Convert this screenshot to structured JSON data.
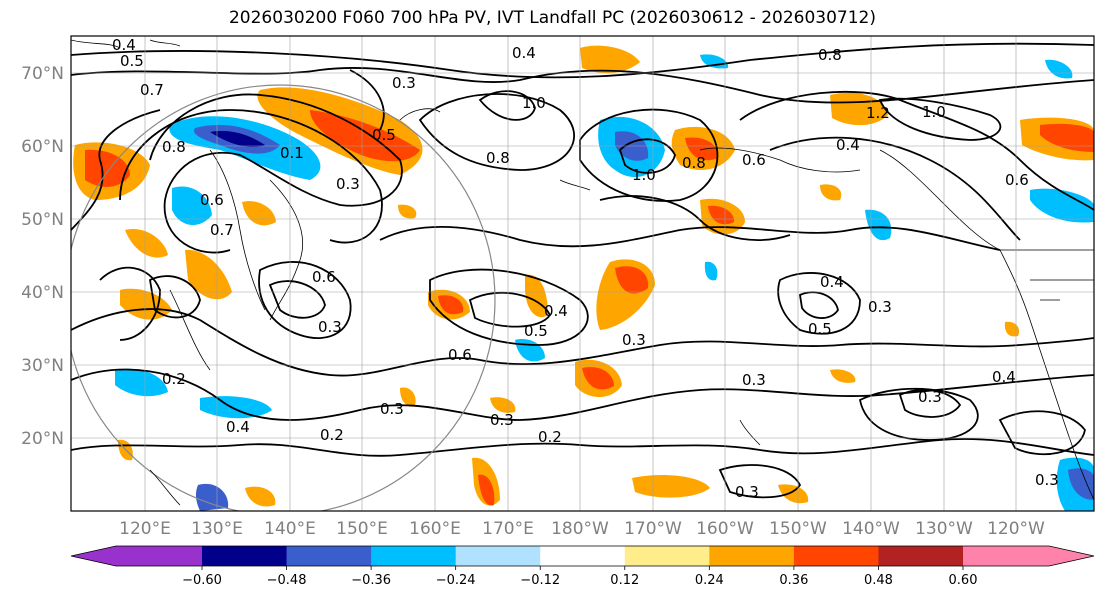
{
  "title": "2026030200 F060 700 hPa PV, IVT Landfall PC (2026030612 - 2026030712)",
  "lat_labels": [
    "70°N",
    "60°N",
    "50°N",
    "40°N",
    "30°N",
    "20°N"
  ],
  "lon_labels": [
    "120°E",
    "130°E",
    "140°E",
    "150°E",
    "160°E",
    "170°E",
    "180°W",
    "170°W",
    "160°W",
    "150°W",
    "140°W",
    "130°W",
    "120°W"
  ],
  "colorbar": {
    "colors": [
      "#9932cc",
      "#00008b",
      "#3a5fcd",
      "#00bfff",
      "#b0e2ff",
      "#ffffff",
      "#ffec8b",
      "#ffa500",
      "#ff4500",
      "#b22222",
      "#ff82ab"
    ],
    "ticks": [
      "−0.60",
      "−0.48",
      "−0.36",
      "−0.24",
      "−0.12",
      "0.12",
      "0.24",
      "0.36",
      "0.48",
      "0.60"
    ]
  },
  "contour_labels": [
    "0.4",
    "0.5",
    "0.7",
    "0.3",
    "0.4",
    "0.8",
    "0.6",
    "0.7",
    "0.1",
    "1.0",
    "0.8",
    "0.5",
    "0.8",
    "1.0",
    "0.6",
    "1.2",
    "1.0",
    "0.6",
    "0.4",
    "0.8",
    "0.3",
    "0.6",
    "0.4",
    "0.5",
    "0.3",
    "0.4",
    "0.5",
    "0.6",
    "0.3",
    "0.2",
    "0.4",
    "0.2",
    "0.3",
    "0.3",
    "0.2",
    "0.3",
    "0.3",
    "0.4",
    "0.3",
    "0.3",
    "0.3"
  ]
}
